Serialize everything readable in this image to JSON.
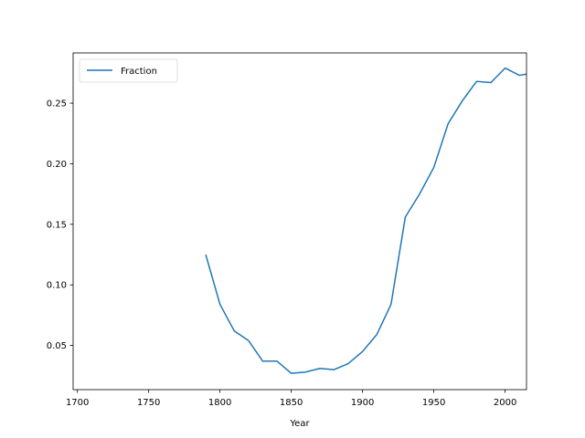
{
  "chart_data": {
    "type": "line",
    "title": "",
    "xlabel": "Year",
    "ylabel": "",
    "xlim": [
      1697,
      2015
    ],
    "ylim": [
      0.0135,
      0.2915
    ],
    "xticks": [
      1700,
      1750,
      1800,
      1850,
      1900,
      1950,
      2000
    ],
    "yticks": [
      0.05,
      0.1,
      0.15,
      0.2,
      0.25
    ],
    "ytick_labels": [
      "0.05",
      "0.10",
      "0.15",
      "0.20",
      "0.25"
    ],
    "grid": false,
    "legend_position": "top-left",
    "series": [
      {
        "name": "Fraction",
        "color": "#1f77b4",
        "x": [
          1790,
          1800,
          1810,
          1820,
          1830,
          1840,
          1850,
          1860,
          1870,
          1880,
          1890,
          1900,
          1910,
          1920,
          1930,
          1940,
          1950,
          1960,
          1970,
          1980,
          1990,
          2000,
          2010,
          2015
        ],
        "y": [
          0.125,
          0.084,
          0.062,
          0.054,
          0.037,
          0.037,
          0.027,
          0.028,
          0.031,
          0.03,
          0.035,
          0.045,
          0.059,
          0.084,
          0.156,
          0.175,
          0.197,
          0.233,
          0.252,
          0.268,
          0.267,
          0.279,
          0.273,
          0.274
        ]
      }
    ]
  }
}
